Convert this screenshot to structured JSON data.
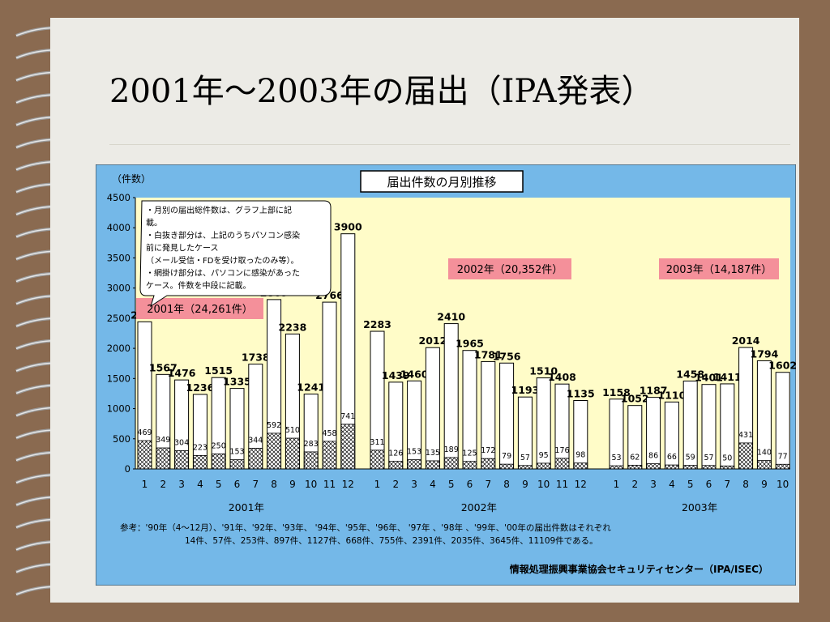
{
  "slide_title": "2001年～2003年の届出（IPA発表）",
  "chart_data": {
    "type": "bar",
    "title": "届出件数の月別推移",
    "ylabel": "（件数）",
    "ylim": [
      0,
      4500
    ],
    "yticks": [
      0,
      500,
      1000,
      1500,
      2000,
      2500,
      3000,
      3500,
      4000,
      4500
    ],
    "series": [
      {
        "name": "総届出件数",
        "values": [
          2440,
          1567,
          1476,
          1236,
          1515,
          1335,
          1738,
          2809,
          2238,
          1241,
          2766,
          3900,
          2283,
          1439,
          1460,
          2012,
          2410,
          1965,
          1781,
          1756,
          1193,
          1510,
          1408,
          1135,
          1158,
          1052,
          1187,
          1110,
          1458,
          1401,
          1411,
          2014,
          1794,
          1602
        ]
      },
      {
        "name": "パソコン感染件数",
        "values": [
          469,
          349,
          304,
          223,
          250,
          153,
          344,
          592,
          510,
          283,
          458,
          741,
          311,
          126,
          153,
          135,
          189,
          125,
          172,
          79,
          57,
          95,
          176,
          98,
          53,
          62,
          86,
          66,
          59,
          57,
          50,
          431,
          140,
          77
        ]
      }
    ],
    "groups": [
      {
        "label": "2001年",
        "months": [
          "1",
          "2",
          "3",
          "4",
          "5",
          "6",
          "7",
          "8",
          "9",
          "10",
          "11",
          "12"
        ],
        "tag": "2001年（24,261件）"
      },
      {
        "label": "2002年",
        "months": [
          "1",
          "2",
          "3",
          "4",
          "5",
          "6",
          "7",
          "8",
          "9",
          "10",
          "11",
          "12"
        ],
        "tag": "2002年（20,352件）"
      },
      {
        "label": "2003年",
        "months": [
          "1",
          "2",
          "3",
          "4",
          "5",
          "6",
          "7",
          "8",
          "9",
          "10"
        ],
        "tag": "2003年（14,187件）"
      }
    ],
    "note_lines": [
      "・月別の届出総件数は、グラフ上部に記",
      "載。",
      "・白抜き部分は、上記のうちパソコン感染",
      "前に発見したケース",
      "（メール受信・FDを受け取ったのみ等）。",
      "・網掛け部分は、パソコンに感染があった",
      "ケース。件数を中段に記載。"
    ],
    "footnote_lines": [
      "参考：'90年（4～12月）、'91年、'92年、'93年、 '94年、'95年、'96年、 '97年 、'98年 、'99年、'00年の届出件数はそれぞれ",
      "14件、57件、253件、897件、1127件、668件、755件、2391件、2035件、3645件、11109件である。"
    ],
    "source": "情報処理振興事業協会セキュリティセンター（IPA/ISEC）",
    "colors": {
      "frame": "#74b8e8",
      "plot_bg": "#fffcc8",
      "bar_fill": "#ffffff",
      "hatch": "#000000",
      "tag_bg": "#f4909a",
      "bar_stroke": "#000000"
    }
  }
}
